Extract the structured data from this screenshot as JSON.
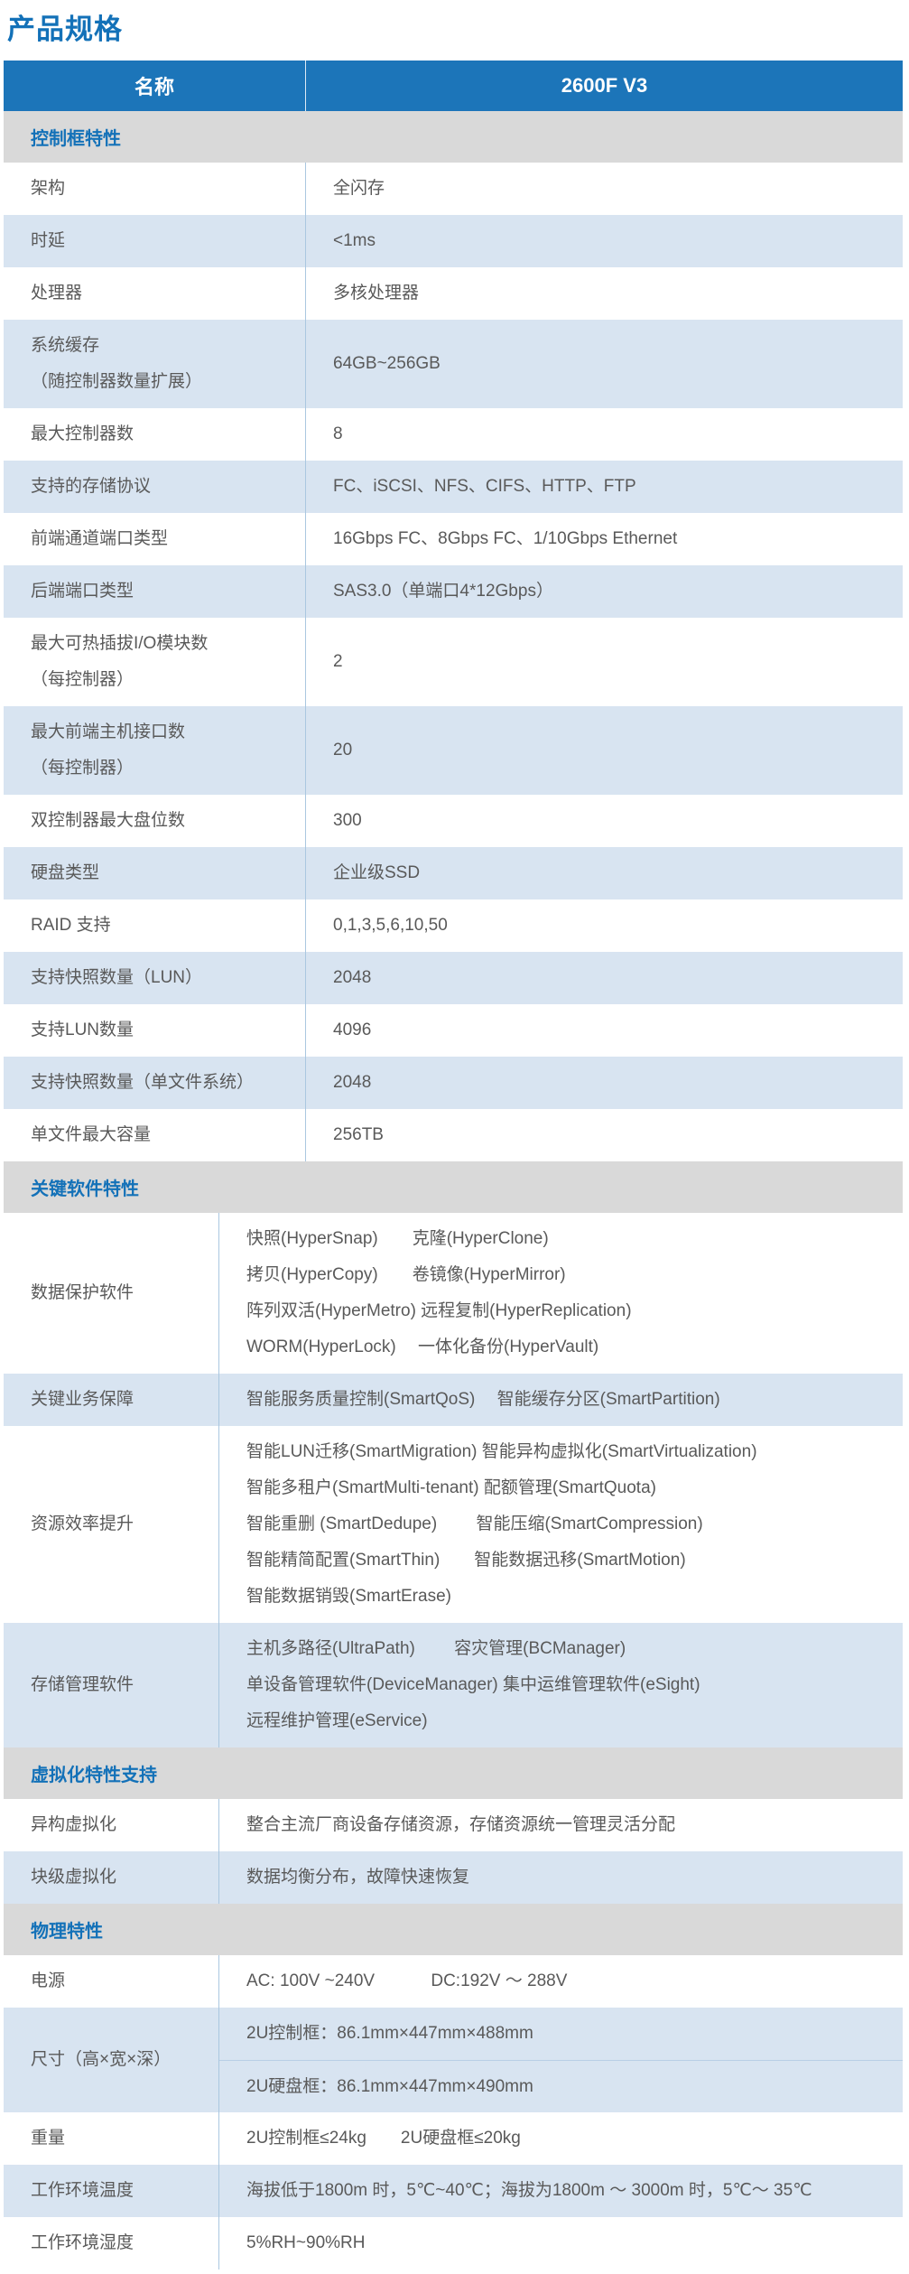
{
  "page": {
    "title": "产品规格"
  },
  "table": {
    "header": {
      "name_col": "名称",
      "model_col": "2600F V3"
    },
    "sections": [
      {
        "title": "控制框特性",
        "label_width": 335,
        "rows": [
          {
            "label": [
              "架构"
            ],
            "value": [
              "全闪存"
            ]
          },
          {
            "label": [
              "时延"
            ],
            "value": [
              "<1ms"
            ]
          },
          {
            "label": [
              "处理器"
            ],
            "value": [
              "多核处理器"
            ]
          },
          {
            "label": [
              "系统缓存",
              "（随控制器数量扩展）"
            ],
            "value": [
              "64GB~256GB"
            ]
          },
          {
            "label": [
              "最大控制器数"
            ],
            "value": [
              "8"
            ]
          },
          {
            "label": [
              "支持的存储协议"
            ],
            "value": [
              "FC、iSCSI、NFS、CIFS、HTTP、FTP"
            ]
          },
          {
            "label": [
              "前端通道端口类型"
            ],
            "value": [
              "16Gbps FC、8Gbps FC、1/10Gbps Ethernet"
            ]
          },
          {
            "label": [
              "后端端口类型"
            ],
            "value": [
              "SAS3.0（单端口4*12Gbps）"
            ]
          },
          {
            "label": [
              "最大可热插拔I/O模块数",
              "（每控制器）"
            ],
            "value": [
              "2"
            ]
          },
          {
            "label": [
              "最大前端主机接口数",
              "（每控制器）"
            ],
            "value": [
              "20"
            ]
          },
          {
            "label": [
              "双控制器最大盘位数"
            ],
            "value": [
              "300"
            ]
          },
          {
            "label": [
              "硬盘类型"
            ],
            "value": [
              "企业级SSD"
            ]
          },
          {
            "label": [
              "RAID 支持"
            ],
            "value": [
              "0,1,3,5,6,10,50"
            ]
          },
          {
            "label": [
              "支持快照数量（LUN）"
            ],
            "value": [
              "2048"
            ]
          },
          {
            "label": [
              "支持LUN数量"
            ],
            "value": [
              "4096"
            ]
          },
          {
            "label": [
              "支持快照数量（单文件系统）"
            ],
            "value": [
              "2048"
            ]
          },
          {
            "label": [
              "单文件最大容量"
            ],
            "value": [
              "256TB"
            ]
          }
        ]
      },
      {
        "title": "关键软件特性",
        "label_width": 239,
        "rows": [
          {
            "label": [
              "数据保护软件"
            ],
            "value": [
              "快照(HyperSnap)　　克隆(HyperClone)",
              "拷贝(HyperCopy)　　卷镜像(HyperMirror)",
              "阵列双活(HyperMetro) 远程复制(HyperReplication)",
              "WORM(HyperLock)　 一体化备份(HyperVault)"
            ]
          },
          {
            "label": [
              "关键业务保障"
            ],
            "value": [
              "智能服务质量控制(SmartQoS)　 智能缓存分区(SmartPartition)"
            ]
          },
          {
            "label": [
              "资源效率提升"
            ],
            "value": [
              "智能LUN迁移(SmartMigration)  智能异构虚拟化(SmartVirtualization)",
              "智能多租户(SmartMulti-tenant)  配额管理(SmartQuota)",
              "智能重删 (SmartDedupe)　　 智能压缩(SmartCompression)",
              "智能精简配置(SmartThin)　　智能数据迅移(SmartMotion)",
              "智能数据销毁(SmartErase)"
            ]
          },
          {
            "label": [
              "存储管理软件"
            ],
            "value": [
              "主机多路径(UltraPath)　　 容灾管理(BCManager)",
              "单设备管理软件(DeviceManager) 集中运维管理软件(eSight)",
              "远程维护管理(eService)"
            ]
          }
        ]
      },
      {
        "title": "虚拟化特性支持",
        "label_width": 239,
        "rows": [
          {
            "label": [
              "异构虚拟化"
            ],
            "value": [
              "整合主流厂商设备存储资源，存储资源统一管理灵活分配"
            ]
          },
          {
            "label": [
              "块级虚拟化"
            ],
            "value": [
              "数据均衡分布，故障快速恢复"
            ]
          }
        ]
      },
      {
        "title": "物理特性",
        "label_width": 239,
        "rows": [
          {
            "label": [
              "电源"
            ],
            "value": [
              "AC: 100V ~240V　　　 DC:192V ～ 288V"
            ]
          },
          {
            "label": [
              "尺寸（高×宽×深）"
            ],
            "subrows": [
              "2U控制框：86.1mm×447mm×488mm",
              "2U硬盘框：86.1mm×447mm×490mm"
            ]
          },
          {
            "label": [
              "重量"
            ],
            "value": [
              "2U控制框≤24kg　　2U硬盘框≤20kg"
            ]
          },
          {
            "label": [
              "工作环境温度"
            ],
            "value": [
              "海拔低于1800m 时，5℃~40℃；海拔为1800m ～ 3000m 时，5℃～ 35℃"
            ]
          },
          {
            "label": [
              "工作环境湿度"
            ],
            "value": [
              "5%RH~90%RH"
            ]
          }
        ]
      }
    ]
  },
  "colors": {
    "accent_blue": "#1371b8",
    "header_bg": "#1c75b9",
    "row_alt_bg": "#d8e4f1",
    "section_bg": "#d9d9d9",
    "body_text": "#595959",
    "divider": "#aac7e0",
    "subrow_divider": "#b9cfe6"
  }
}
